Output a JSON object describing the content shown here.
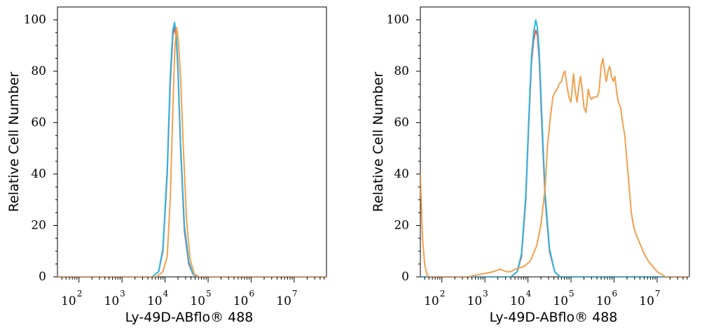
{
  "chart_data": [
    {
      "type": "line",
      "xlabel": "Ly-49D-ABflo® 488",
      "ylabel": "Relative Cell Number",
      "x_scale": "log",
      "x_tick_labels": [
        "10^2",
        "10^3",
        "10^4",
        "10^5",
        "10^6",
        "10^7"
      ],
      "y_tick_labels": [
        "0",
        "20",
        "40",
        "60",
        "80",
        "100"
      ],
      "ylim": [
        0,
        105
      ],
      "xlim_log10": [
        1.5,
        7.75
      ],
      "grid": false,
      "series": [
        {
          "color": "#e05a4f",
          "log10_x": [
            3.7,
            3.85,
            3.95,
            4.05,
            4.12,
            4.18,
            4.22,
            4.26,
            4.3,
            4.36,
            4.45,
            4.55,
            4.65,
            4.75
          ],
          "values": [
            0,
            2,
            10,
            40,
            75,
            94,
            97,
            93,
            80,
            50,
            18,
            5,
            1,
            0
          ]
        },
        {
          "color": "#2ab7e6",
          "log10_x": [
            3.7,
            3.85,
            3.95,
            4.05,
            4.12,
            4.18,
            4.22,
            4.26,
            4.3,
            4.36,
            4.45,
            4.55,
            4.65,
            4.75
          ],
          "values": [
            0,
            2,
            11,
            42,
            78,
            96,
            99,
            95,
            82,
            52,
            20,
            6,
            1,
            0
          ]
        },
        {
          "color": "#f2a04e",
          "log10_x": [
            3.8,
            3.95,
            4.05,
            4.12,
            4.18,
            4.23,
            4.27,
            4.31,
            4.36,
            4.42,
            4.5,
            4.58,
            4.68,
            4.8
          ],
          "values": [
            0,
            2,
            8,
            30,
            65,
            90,
            97,
            92,
            78,
            52,
            22,
            7,
            1,
            0
          ]
        }
      ]
    },
    {
      "type": "line",
      "xlabel": "Ly-49D-ABflo® 488",
      "ylabel": "Relative Cell Number",
      "x_scale": "log",
      "x_tick_labels": [
        "10^2",
        "10^3",
        "10^4",
        "10^5",
        "10^6",
        "10^7"
      ],
      "y_tick_labels": [
        "0",
        "20",
        "40",
        "60",
        "80",
        "100"
      ],
      "ylim": [
        0,
        105
      ],
      "xlim_log10": [
        1.5,
        7.75
      ],
      "grid": false,
      "series": [
        {
          "color": "#e05a4f",
          "log10_x": [
            3.6,
            3.75,
            3.85,
            3.95,
            4.02,
            4.08,
            4.13,
            4.18,
            4.22,
            4.26,
            4.32,
            4.4,
            4.5,
            4.62,
            4.75
          ],
          "values": [
            0,
            2,
            8,
            30,
            60,
            83,
            92,
            96,
            94,
            85,
            60,
            30,
            10,
            2,
            0
          ]
        },
        {
          "color": "#2ab7e6",
          "log10_x": [
            3.6,
            3.75,
            3.85,
            3.95,
            4.02,
            4.08,
            4.13,
            4.18,
            4.22,
            4.26,
            4.32,
            4.4,
            4.5,
            4.62,
            4.75
          ],
          "values": [
            0,
            2,
            9,
            32,
            62,
            85,
            95,
            100,
            97,
            88,
            63,
            32,
            11,
            2,
            0
          ]
        },
        {
          "color": "#f2a04e",
          "log10_x": [
            1.5,
            1.55,
            1.6,
            1.65,
            1.7,
            1.8,
            2.0,
            2.3,
            2.6,
            2.9,
            3.2,
            3.35,
            3.5,
            3.6,
            3.7,
            3.9,
            4.05,
            4.2,
            4.3,
            4.4,
            4.45,
            4.52,
            4.58,
            4.63,
            4.68,
            4.72,
            4.78,
            4.82,
            4.86,
            4.9,
            4.95,
            5.0,
            5.03,
            5.06,
            5.1,
            5.14,
            5.18,
            5.22,
            5.26,
            5.3,
            5.35,
            5.4,
            5.44,
            5.48,
            5.52,
            5.56,
            5.6,
            5.65,
            5.7,
            5.74,
            5.78,
            5.82,
            5.86,
            5.9,
            5.94,
            5.98,
            6.02,
            6.06,
            6.1,
            6.15,
            6.2,
            6.25,
            6.3,
            6.35,
            6.4,
            6.45,
            6.5,
            6.6,
            6.7,
            6.8,
            6.9,
            7.0,
            7.1,
            7.2,
            7.3,
            7.4,
            7.5,
            7.6,
            7.7
          ],
          "values": [
            40,
            15,
            5,
            1,
            0,
            0,
            0,
            0,
            0,
            1,
            2,
            3,
            2,
            2,
            3,
            4,
            6,
            12,
            20,
            35,
            50,
            62,
            70,
            72,
            73,
            75,
            76,
            79,
            80,
            75,
            70,
            68,
            74,
            79,
            72,
            68,
            74,
            78,
            73,
            66,
            64,
            73,
            70,
            69,
            70,
            70,
            70,
            72,
            82,
            85,
            80,
            76,
            80,
            82,
            78,
            76,
            78,
            72,
            68,
            66,
            60,
            55,
            45,
            35,
            25,
            20,
            17,
            13,
            9,
            6,
            4,
            2,
            1,
            0,
            0,
            0,
            0,
            0,
            0
          ]
        }
      ]
    }
  ]
}
